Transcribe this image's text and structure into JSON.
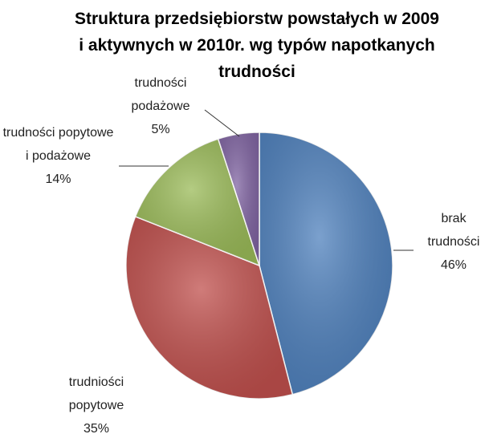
{
  "chart_data": {
    "type": "pie",
    "title": [
      "Struktura przedsiębiorstw powstałych w 2009",
      "i aktywnych w 2010r. wg typów napotkanych",
      "trudności"
    ],
    "categories": [
      "brak trudności",
      "trudniości popytowe",
      "trudności popytowe i podażowe",
      "trudności podażowe"
    ],
    "values": [
      46,
      35,
      14,
      5
    ],
    "value_labels": [
      "46%",
      "35%",
      "14%",
      "5%"
    ],
    "colors": [
      "#4f81bd",
      "#c0504d",
      "#9bbb59",
      "#8064a2"
    ]
  }
}
